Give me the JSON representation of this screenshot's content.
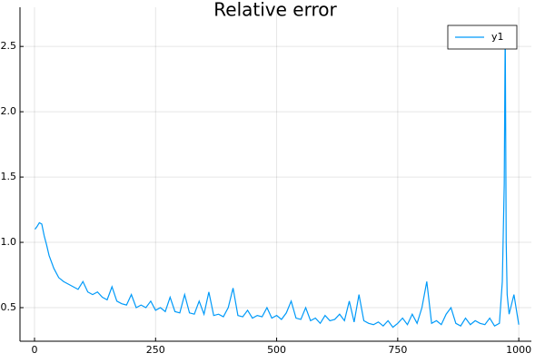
{
  "chart_data": {
    "type": "line",
    "title": "Relative error",
    "x": [
      1,
      5,
      10,
      15,
      20,
      25,
      30,
      40,
      50,
      60,
      70,
      80,
      90,
      100,
      110,
      120,
      130,
      140,
      150,
      160,
      170,
      180,
      190,
      200,
      210,
      220,
      230,
      240,
      250,
      260,
      270,
      280,
      290,
      300,
      310,
      320,
      330,
      340,
      350,
      360,
      370,
      380,
      390,
      400,
      410,
      420,
      430,
      440,
      450,
      460,
      470,
      480,
      490,
      500,
      510,
      520,
      530,
      540,
      550,
      560,
      570,
      580,
      590,
      600,
      610,
      620,
      630,
      640,
      650,
      660,
      670,
      680,
      690,
      700,
      710,
      720,
      730,
      740,
      750,
      760,
      770,
      780,
      790,
      800,
      810,
      820,
      830,
      840,
      850,
      860,
      870,
      880,
      890,
      900,
      910,
      920,
      930,
      940,
      950,
      960,
      966,
      970,
      972,
      974,
      976,
      980,
      990,
      1000
    ],
    "series": [
      {
        "name": "y1",
        "color": "#009af9",
        "values": [
          1.1,
          1.12,
          1.15,
          1.14,
          1.05,
          0.98,
          0.9,
          0.8,
          0.73,
          0.7,
          0.68,
          0.66,
          0.64,
          0.7,
          0.62,
          0.6,
          0.62,
          0.58,
          0.56,
          0.66,
          0.55,
          0.53,
          0.52,
          0.6,
          0.5,
          0.52,
          0.5,
          0.55,
          0.48,
          0.5,
          0.47,
          0.58,
          0.47,
          0.46,
          0.6,
          0.46,
          0.45,
          0.55,
          0.45,
          0.62,
          0.44,
          0.45,
          0.43,
          0.5,
          0.65,
          0.44,
          0.43,
          0.48,
          0.42,
          0.44,
          0.43,
          0.5,
          0.42,
          0.44,
          0.41,
          0.46,
          0.55,
          0.42,
          0.41,
          0.5,
          0.4,
          0.42,
          0.38,
          0.44,
          0.4,
          0.41,
          0.45,
          0.4,
          0.55,
          0.39,
          0.6,
          0.4,
          0.38,
          0.37,
          0.39,
          0.36,
          0.4,
          0.35,
          0.38,
          0.42,
          0.37,
          0.45,
          0.38,
          0.5,
          0.7,
          0.38,
          0.4,
          0.37,
          0.45,
          0.5,
          0.38,
          0.36,
          0.42,
          0.37,
          0.4,
          0.38,
          0.37,
          0.42,
          0.36,
          0.38,
          0.7,
          1.45,
          2.65,
          1.0,
          0.6,
          0.45,
          0.6,
          0.37
        ]
      }
    ],
    "xlim": [
      -30,
      1026
    ],
    "ylim": [
      0.243,
      2.8
    ],
    "xticks": [
      0,
      250,
      500,
      750,
      1000
    ],
    "yticks": [
      0.5,
      {
        "value": 1,
        "label": "1.0"
      },
      1.5,
      {
        "value": 2,
        "label": "2.0"
      },
      2.5
    ],
    "grid": true,
    "legend": "top-right"
  }
}
